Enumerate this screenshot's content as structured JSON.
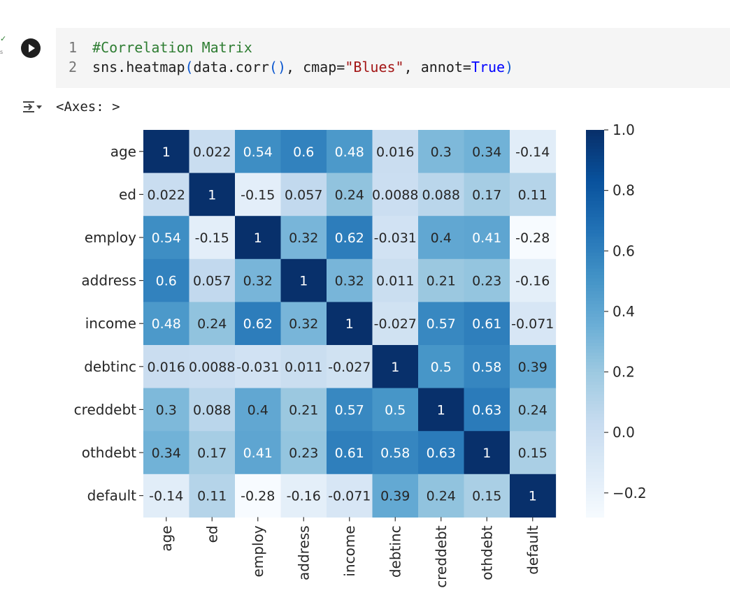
{
  "cell": {
    "status_check": "✓",
    "status_time": "s",
    "code_lines": [
      {
        "num": "1",
        "comment": "#Correlation Matrix"
      },
      {
        "num": "2",
        "code": {
          "fn": "sns.heatmap",
          "open": "(",
          "arg": "data.corr",
          "call": "()",
          "sep1": ", cmap=",
          "str": "\"Blues\"",
          "sep2": ", annot=",
          "kw": "True",
          "close": ")"
        }
      }
    ]
  },
  "output": {
    "icon": "output-toggle-icon",
    "text": "<Axes: >"
  },
  "chart_data": {
    "type": "heatmap",
    "title": "",
    "xlabel": "",
    "ylabel": "",
    "colormap": "Blues",
    "annot": true,
    "vmin": -0.28,
    "vmax": 1.0,
    "labels": [
      "age",
      "ed",
      "employ",
      "address",
      "income",
      "debtinc",
      "creddebt",
      "othdebt",
      "default"
    ],
    "annotations": [
      [
        "1",
        "0.022",
        "0.54",
        "0.6",
        "0.48",
        "0.016",
        "0.3",
        "0.34",
        "-0.14"
      ],
      [
        "0.022",
        "1",
        "-0.15",
        "0.057",
        "0.24",
        "0.0088",
        "0.088",
        "0.17",
        "0.11"
      ],
      [
        "0.54",
        "-0.15",
        "1",
        "0.32",
        "0.62",
        "-0.031",
        "0.4",
        "0.41",
        "-0.28"
      ],
      [
        "0.6",
        "0.057",
        "0.32",
        "1",
        "0.32",
        "0.011",
        "0.21",
        "0.23",
        "-0.16"
      ],
      [
        "0.48",
        "0.24",
        "0.62",
        "0.32",
        "1",
        "-0.027",
        "0.57",
        "0.61",
        "-0.071"
      ],
      [
        "0.016",
        "0.0088",
        "-0.031",
        "0.011",
        "-0.027",
        "1",
        "0.5",
        "0.58",
        "0.39"
      ],
      [
        "0.3",
        "0.088",
        "0.4",
        "0.21",
        "0.57",
        "0.5",
        "1",
        "0.63",
        "0.24"
      ],
      [
        "0.34",
        "0.17",
        "0.41",
        "0.23",
        "0.61",
        "0.58",
        "0.63",
        "1",
        "0.15"
      ],
      [
        "-0.14",
        "0.11",
        "-0.28",
        "-0.16",
        "-0.071",
        "0.39",
        "0.24",
        "0.15",
        "1"
      ]
    ],
    "colorbar": {
      "ticks": [
        1.0,
        0.8,
        0.6,
        0.4,
        0.2,
        0.0,
        -0.2
      ],
      "tick_labels": [
        "1.0",
        "0.8",
        "0.6",
        "0.4",
        "0.2",
        "0.0",
        "−0.2"
      ]
    },
    "grid": false
  }
}
